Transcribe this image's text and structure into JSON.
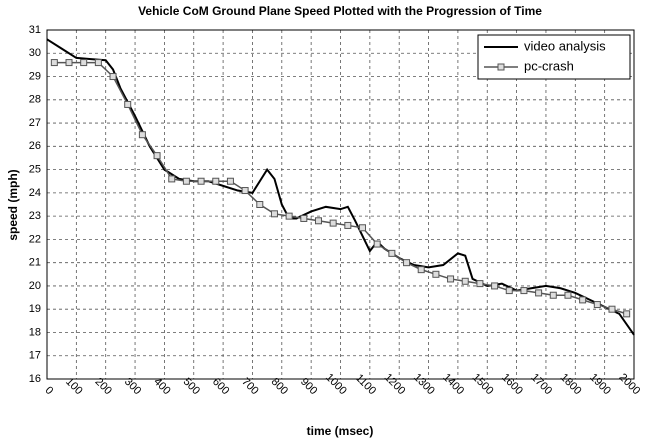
{
  "chart_data": {
    "type": "line",
    "title": "Vehicle CoM Ground Plane Speed Plotted with the Progression of Time",
    "x_label": "time (msec)",
    "y_label": "speed (mph)",
    "xlim": [
      0,
      2000
    ],
    "xticks": [
      0,
      100,
      200,
      300,
      400,
      500,
      600,
      700,
      800,
      900,
      1000,
      1100,
      1200,
      1300,
      1400,
      1500,
      1600,
      1700,
      1800,
      1900,
      2000
    ],
    "ylim": [
      16,
      31
    ],
    "yticks": [
      16,
      17,
      18,
      19,
      20,
      21,
      22,
      23,
      24,
      25,
      26,
      27,
      28,
      29,
      30,
      31
    ],
    "grid": true,
    "legend": "upper right",
    "series": [
      {
        "name": "video analysis",
        "color": "#000000",
        "marker": "none",
        "x": [
          0,
          50,
          100,
          150,
          200,
          225,
          250,
          300,
          350,
          400,
          450,
          500,
          550,
          600,
          650,
          700,
          725,
          750,
          775,
          800,
          825,
          850,
          900,
          950,
          1000,
          1025,
          1050,
          1100,
          1125,
          1150,
          1200,
          1250,
          1300,
          1350,
          1400,
          1425,
          1450,
          1500,
          1550,
          1600,
          1650,
          1700,
          1750,
          1800,
          1850,
          1900,
          1950,
          2000
        ],
        "values": [
          30.6,
          30.2,
          29.8,
          29.75,
          29.7,
          29.3,
          28.5,
          27.3,
          26.0,
          25.0,
          24.6,
          24.5,
          24.5,
          24.3,
          24.1,
          24.0,
          24.5,
          25.0,
          24.6,
          23.5,
          22.9,
          22.9,
          23.2,
          23.4,
          23.3,
          23.4,
          22.8,
          21.5,
          21.9,
          21.6,
          21.2,
          20.9,
          20.8,
          20.9,
          21.4,
          21.3,
          20.3,
          20.0,
          20.1,
          19.8,
          19.9,
          20.0,
          19.9,
          19.7,
          19.4,
          19.1,
          18.8,
          17.9
        ]
      },
      {
        "name": "pc-crash",
        "color": "#555555",
        "marker": "square",
        "x": [
          25,
          75,
          125,
          175,
          225,
          275,
          325,
          375,
          425,
          475,
          525,
          575,
          625,
          675,
          725,
          775,
          825,
          875,
          925,
          975,
          1025,
          1075,
          1125,
          1175,
          1225,
          1275,
          1325,
          1375,
          1425,
          1475,
          1525,
          1575,
          1625,
          1675,
          1725,
          1775,
          1825,
          1875,
          1925,
          1975
        ],
        "values": [
          29.6,
          29.6,
          29.6,
          29.6,
          29.0,
          27.8,
          26.5,
          25.6,
          24.6,
          24.5,
          24.5,
          24.5,
          24.5,
          24.1,
          23.5,
          23.1,
          23.0,
          22.9,
          22.8,
          22.7,
          22.6,
          22.5,
          21.8,
          21.4,
          21.0,
          20.7,
          20.5,
          20.3,
          20.2,
          20.1,
          20.0,
          19.8,
          19.8,
          19.7,
          19.6,
          19.6,
          19.4,
          19.2,
          19.0,
          18.8
        ]
      }
    ]
  }
}
